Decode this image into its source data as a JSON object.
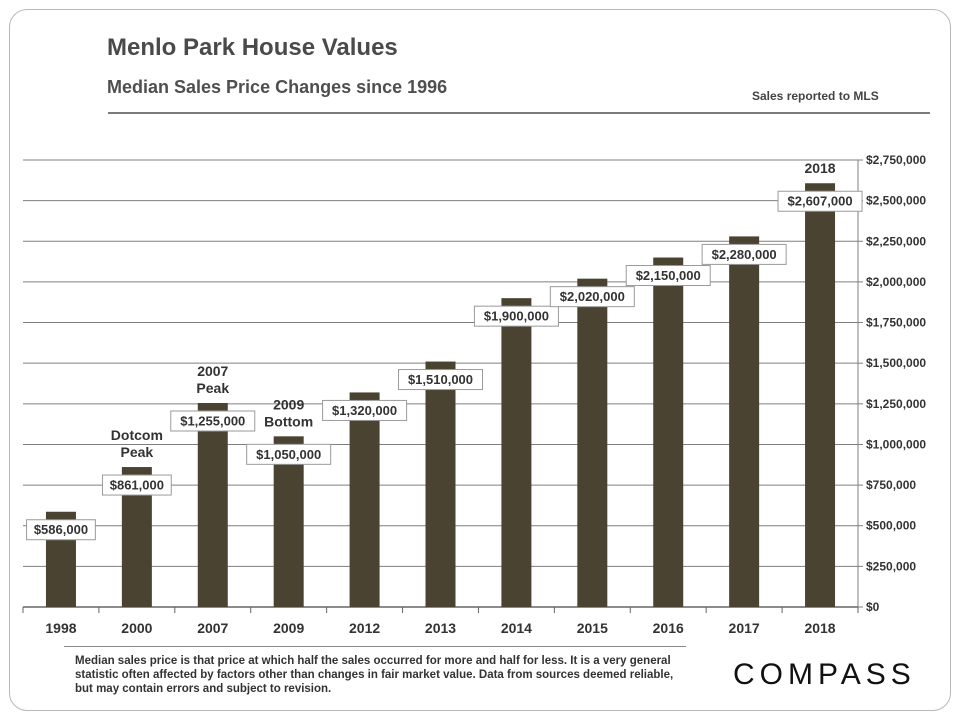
{
  "header": {
    "title": "Menlo Park House Values",
    "subtitle": "Median Sales Price Changes since 1996",
    "note": "Sales reported to MLS"
  },
  "footnote": "Median sales price is that price at which half the sales occurred for more and half for less. It is a very general statistic often affected by factors other than changes in fair market value. Data from sources deemed reliable, but may contain errors and subject to revision.",
  "logo": "COMPASS",
  "colors": {
    "bar": "#4a4331",
    "grid": "#7f7f7f",
    "text": "#333333"
  },
  "chart_data": {
    "type": "bar",
    "categories": [
      "1998",
      "2000",
      "2007",
      "2009",
      "2012",
      "2013",
      "2014",
      "2015",
      "2016",
      "2017",
      "2018"
    ],
    "values": [
      586000,
      861000,
      1255000,
      1050000,
      1320000,
      1510000,
      1900000,
      2020000,
      2150000,
      2280000,
      2607000
    ],
    "value_labels": [
      "$586,000",
      "$861,000",
      "$1,255,000",
      "$1,050,000",
      "$1,320,000",
      "$1,510,000",
      "$1,900,000",
      "$2,020,000",
      "$2,150,000",
      "$2,280,000",
      "$2,607,000"
    ],
    "ylim": [
      0,
      2750000
    ],
    "yticks": [
      "$0",
      "$250,000",
      "$500,000",
      "$750,000",
      "$1,000,000",
      "$1,250,000",
      "$1,500,000",
      "$1,750,000",
      "$2,000,000",
      "$2,250,000",
      "$2,500,000",
      "$2,750,000"
    ],
    "y_axis_side": "right",
    "grid": true,
    "annotations": [
      {
        "text": "Dotcom Peak",
        "category": "2000"
      },
      {
        "text": "2007 Peak",
        "category": "2007"
      },
      {
        "text": "2009 Bottom",
        "category": "2009"
      },
      {
        "text": "2018",
        "category": "2018"
      }
    ]
  }
}
